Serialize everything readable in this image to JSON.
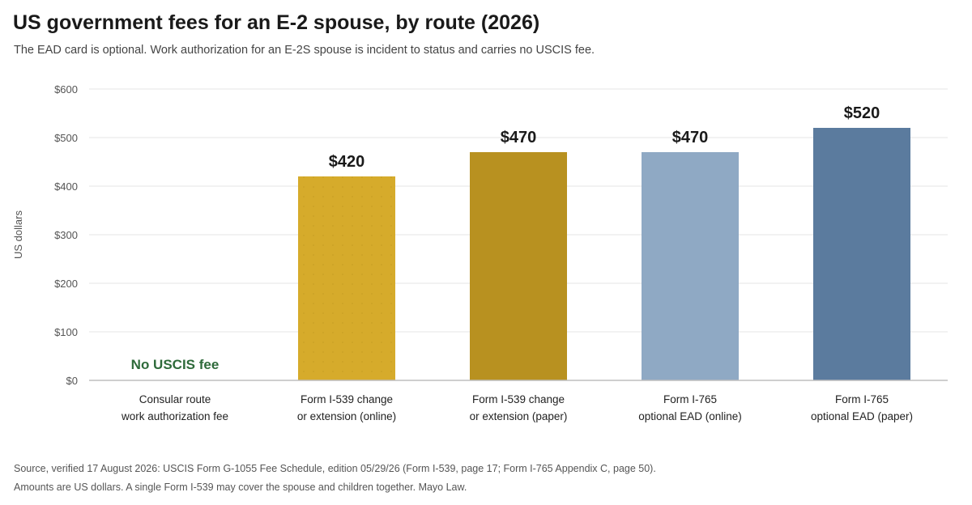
{
  "header": {
    "title": "US government fees for an E-2 spouse, by route (2026)",
    "subtitle": "The EAD card is optional. Work authorization for an E-2S spouse is incident to status and carries no USCIS fee."
  },
  "chart_data": {
    "type": "bar",
    "ylabel": "US dollars",
    "ylim": [
      0,
      600
    ],
    "yticks": [
      0,
      100,
      200,
      300,
      400,
      500,
      600
    ],
    "ytick_labels": [
      "$0",
      "$100",
      "$200",
      "$300",
      "$400",
      "$500",
      "$600"
    ],
    "grid": true,
    "categories": [
      [
        "Consular route",
        "work authorization fee"
      ],
      [
        "Form I-539 change",
        "or extension (online)"
      ],
      [
        "Form I-539 change",
        "or extension (paper)"
      ],
      [
        "Form I-765",
        "optional EAD (online)"
      ],
      [
        "Form I-765",
        "optional EAD (paper)"
      ]
    ],
    "values": [
      0,
      420,
      470,
      470,
      520
    ],
    "value_labels": [
      "No USCIS fee",
      "$420",
      "$470",
      "$470",
      "$520"
    ],
    "colors": [
      "#2e6a3a",
      "#d6ab2b",
      "#b89120",
      "#8fa9c4",
      "#5b7b9e"
    ],
    "zero_label_color": "#2e6a3a"
  },
  "footer": {
    "source": "Source, verified 17 August 2026: USCIS Form G-1055 Fee Schedule, edition 05/29/26 (Form I-539, page 17; Form I-765 Appendix C, page 50).",
    "note": "Amounts are US dollars. A single Form I-539 may cover the spouse and children together. Mayo Law."
  }
}
